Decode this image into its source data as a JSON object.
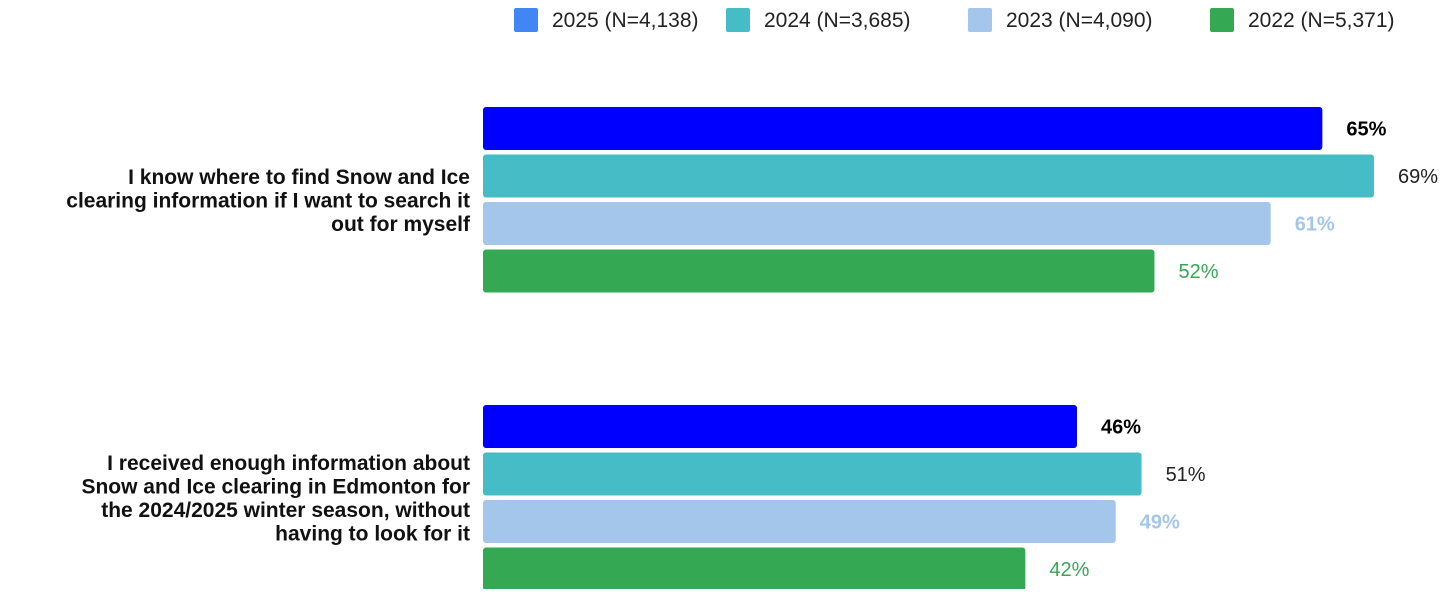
{
  "chart_data": {
    "type": "bar",
    "orientation": "horizontal",
    "title": "",
    "xlabel": "",
    "ylabel": "",
    "xlim": [
      0,
      69
    ],
    "grid": false,
    "legend_position": "top-right",
    "categories": [
      {
        "label_lines": [
          "I know where to find Snow and Ice",
          "clearing information if I want to search it",
          "out for myself"
        ]
      },
      {
        "label_lines": [
          "I received enough information about",
          "Snow and Ice clearing in Edmonton for",
          "the 2024/2025 winter season, without",
          "having to look for it"
        ]
      }
    ],
    "series": [
      {
        "name": "2025 (N=4,138)",
        "legend_color": "#4285f4",
        "bar_color": "#0000ff",
        "value_label_color": "#000000",
        "value_label_bold": true,
        "values": [
          65,
          46
        ],
        "value_labels": [
          "65%",
          "46%"
        ]
      },
      {
        "name": "2024 (N=3,685)",
        "legend_color": "#46bdc6",
        "bar_color": "#46bdc6",
        "value_label_color": "#222222",
        "value_label_bold": false,
        "values": [
          69,
          51
        ],
        "value_labels": [
          "69%",
          "51%"
        ]
      },
      {
        "name": "2023 (N=4,090)",
        "legend_color": "#a4c6ea",
        "bar_color": "#a4c6ea",
        "value_label_color": "#a4c6ea",
        "value_label_bold": true,
        "values": [
          61,
          49
        ],
        "value_labels": [
          "61%",
          "49%"
        ]
      },
      {
        "name": "2022 (N=5,371)",
        "legend_color": "#34a853",
        "bar_color": "#34a853",
        "value_label_color": "#34a853",
        "value_label_bold": false,
        "values": [
          52,
          42
        ],
        "value_labels": [
          "52%",
          "42%"
        ]
      }
    ]
  }
}
